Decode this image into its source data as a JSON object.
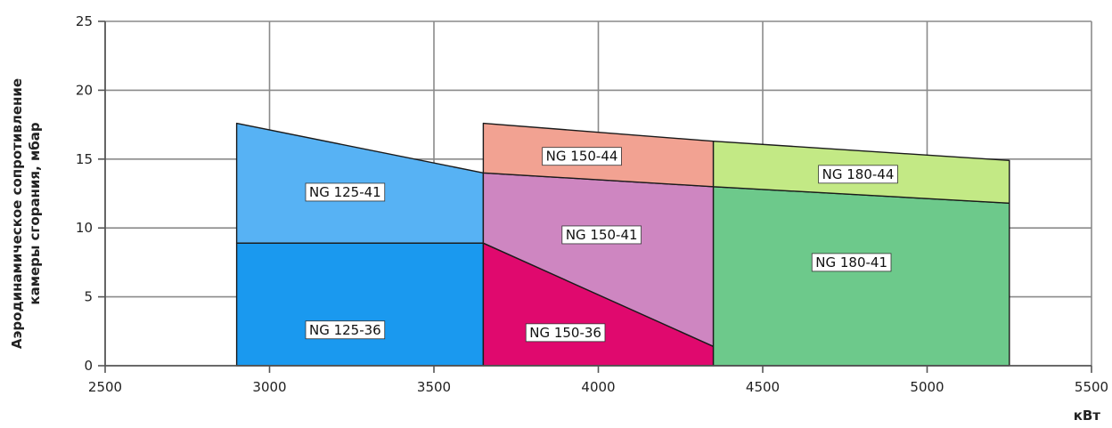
{
  "chart_data": {
    "type": "area",
    "title": "",
    "ylabel_line1": "Аэродинамическое сопротивление",
    "ylabel_line2": "камеры сгорания, мбар",
    "xlabel": "кВт",
    "xlim": [
      2500,
      5500
    ],
    "ylim": [
      0,
      25
    ],
    "x_ticks": [
      2500,
      3000,
      3500,
      4000,
      4500,
      5000,
      5500
    ],
    "y_ticks": [
      0,
      5,
      10,
      15,
      20,
      25
    ],
    "grid": true,
    "regions": [
      {
        "name": "NG 125-36",
        "color": "#1a99ef",
        "polygon": [
          [
            2900,
            0
          ],
          [
            3650,
            0
          ],
          [
            3650,
            8.9
          ],
          [
            2900,
            8.9
          ]
        ],
        "label_pos": [
          3230,
          2.6
        ]
      },
      {
        "name": "NG 125-41",
        "color": "#57b2f4",
        "polygon": [
          [
            2900,
            8.9
          ],
          [
            3650,
            8.9
          ],
          [
            3650,
            14.0
          ],
          [
            2900,
            17.6
          ]
        ],
        "label_pos": [
          3230,
          12.6
        ]
      },
      {
        "name": "NG 150-36",
        "color": "#e0096e",
        "polygon": [
          [
            3650,
            0
          ],
          [
            4350,
            0
          ],
          [
            4350,
            1.4
          ],
          [
            3650,
            8.9
          ]
        ],
        "label_pos": [
          3900,
          2.4
        ]
      },
      {
        "name": "NG 150-41",
        "color": "#ce86c1",
        "polygon": [
          [
            3650,
            8.9
          ],
          [
            4350,
            1.4
          ],
          [
            4350,
            13.0
          ],
          [
            3650,
            14.0
          ]
        ],
        "label_pos": [
          4010,
          9.5
        ]
      },
      {
        "name": "NG 150-44",
        "color": "#f2a292",
        "polygon": [
          [
            3650,
            14.0
          ],
          [
            4350,
            13.0
          ],
          [
            4350,
            16.3
          ],
          [
            3650,
            17.6
          ]
        ],
        "label_pos": [
          3950,
          15.2
        ]
      },
      {
        "name": "NG 180-41",
        "color": "#6dc98b",
        "polygon": [
          [
            4350,
            0
          ],
          [
            5250,
            0
          ],
          [
            5250,
            11.8
          ],
          [
            4350,
            13.0
          ]
        ],
        "label_pos": [
          4770,
          7.5
        ]
      },
      {
        "name": "NG 180-44",
        "color": "#c3e985",
        "polygon": [
          [
            4350,
            13.0
          ],
          [
            5250,
            11.8
          ],
          [
            5250,
            14.9
          ],
          [
            4350,
            16.3
          ]
        ],
        "label_pos": [
          4790,
          13.9
        ]
      }
    ]
  }
}
